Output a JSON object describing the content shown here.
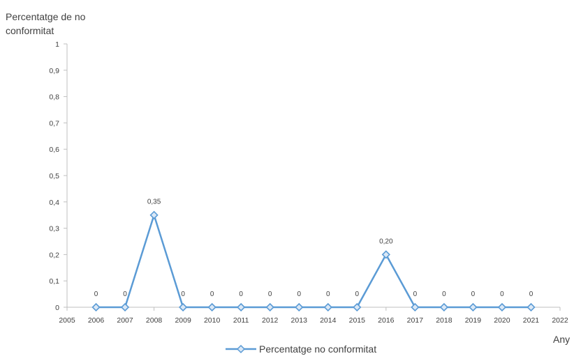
{
  "chart_data": {
    "type": "line",
    "ylabel_lines": [
      "Percentatge de no",
      "conformitat"
    ],
    "xlabel": "Any",
    "xlim": [
      2005,
      2022
    ],
    "ylim": [
      0,
      1
    ],
    "x_ticks": [
      "2005",
      "2006",
      "2007",
      "2008",
      "2009",
      "2010",
      "2011",
      "2012",
      "2013",
      "2014",
      "2015",
      "2016",
      "2017",
      "2018",
      "2019",
      "2020",
      "2021",
      "2022"
    ],
    "y_ticks": [
      "0",
      "0,1",
      "0,2",
      "0,3",
      "0,4",
      "0,5",
      "0,6",
      "0,7",
      "0,8",
      "0,9",
      "1"
    ],
    "series": [
      {
        "name": "Percentatge no conformitat",
        "color": "#5b9bd5",
        "marker": "diamond",
        "x": [
          2006,
          2007,
          2008,
          2009,
          2010,
          2011,
          2012,
          2013,
          2014,
          2015,
          2016,
          2017,
          2018,
          2019,
          2020,
          2021
        ],
        "y": [
          0,
          0,
          0.35,
          0,
          0,
          0,
          0,
          0,
          0,
          0,
          0.2,
          0,
          0,
          0,
          0,
          0
        ],
        "labels": [
          "0",
          "0",
          "0,35",
          "0",
          "0",
          "0",
          "0",
          "0",
          "0",
          "0",
          "0,20",
          "0",
          "0",
          "0",
          "0",
          "0"
        ]
      }
    ],
    "grid": false,
    "legend_position": "bottom"
  }
}
